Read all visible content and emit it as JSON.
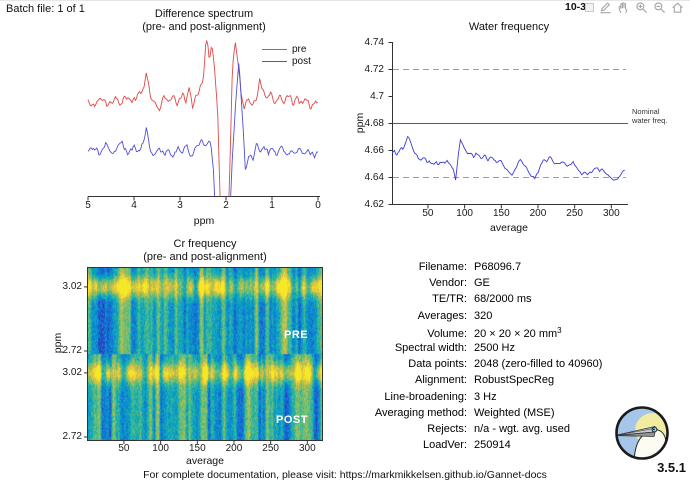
{
  "page": {
    "batch_label": "Batch file: 1 of 1",
    "date_visible": "10-3",
    "footer_text": "For complete documentation, please visit: https://markmikkelsen.github.io/Gannet-docs",
    "version": "3.5.1"
  },
  "toolbar": {
    "icons": [
      "edit",
      "pan",
      "zoom-in",
      "zoom-out",
      "home"
    ]
  },
  "colors": {
    "pre_line": "#e04848",
    "post_line": "#5050d8",
    "water_line": "#3c3cd9",
    "dashed_ref": "#9e9e9e",
    "solid_ref": "#5a5a5a",
    "axis": "#333333"
  },
  "chart_data": [
    {
      "id": "difference-spectrum",
      "type": "line",
      "title": "Difference spectrum",
      "subtitle": "(pre- and post-alignment)",
      "xlabel": "ppm",
      "xlim": [
        5,
        0
      ],
      "x_ticks": [
        5,
        4,
        3,
        2,
        1,
        0
      ],
      "legend": [
        "pre",
        "post"
      ],
      "y_unit_note": "relative amplitude, 0=baseline axis, 100=plot top; negative = clipped below axis",
      "series": [
        {
          "name": "pre",
          "color": "#e04848",
          "noise_amplitude": 2.3,
          "key_points": [
            [
              5,
              62
            ],
            [
              4.85,
              59
            ],
            [
              4.7,
              63
            ],
            [
              4.55,
              58
            ],
            [
              4.42,
              64
            ],
            [
              4.3,
              60
            ],
            [
              4.18,
              66
            ],
            [
              4.05,
              61
            ],
            [
              3.92,
              64
            ],
            [
              3.8,
              68
            ],
            [
              3.73,
              80
            ],
            [
              3.65,
              66
            ],
            [
              3.55,
              60
            ],
            [
              3.45,
              57
            ],
            [
              3.35,
              65
            ],
            [
              3.25,
              59
            ],
            [
              3.15,
              64
            ],
            [
              3.05,
              60
            ],
            [
              2.95,
              67
            ],
            [
              2.87,
              61
            ],
            [
              2.8,
              70
            ],
            [
              2.73,
              58
            ],
            [
              2.65,
              65
            ],
            [
              2.57,
              69
            ],
            [
              2.5,
              75
            ],
            [
              2.44,
              97
            ],
            [
              2.4,
              100
            ],
            [
              2.36,
              88
            ],
            [
              2.31,
              98
            ],
            [
              2.27,
              90
            ],
            [
              2.18,
              55
            ],
            [
              2.09,
              -40
            ],
            [
              2.0,
              -45
            ],
            [
              1.93,
              5
            ],
            [
              1.86,
              85
            ],
            [
              1.8,
              101
            ],
            [
              1.75,
              90
            ],
            [
              1.68,
              70
            ],
            [
              1.6,
              57
            ],
            [
              1.52,
              64
            ],
            [
              1.44,
              59
            ],
            [
              1.35,
              62
            ],
            [
              1.27,
              77
            ],
            [
              1.2,
              70
            ],
            [
              1.12,
              64
            ],
            [
              1.03,
              67
            ],
            [
              0.95,
              60
            ],
            [
              0.85,
              66
            ],
            [
              0.75,
              61
            ],
            [
              0.65,
              65
            ],
            [
              0.55,
              60
            ],
            [
              0.45,
              64
            ],
            [
              0.35,
              59
            ],
            [
              0.25,
              63
            ],
            [
              0.15,
              57
            ],
            [
              0.05,
              61
            ],
            [
              0,
              60
            ]
          ]
        },
        {
          "name": "post",
          "color": "#5050d8",
          "noise_amplitude": 1.9,
          "key_points": [
            [
              5,
              29
            ],
            [
              4.88,
              32
            ],
            [
              4.75,
              27
            ],
            [
              4.62,
              34
            ],
            [
              4.5,
              28
            ],
            [
              4.38,
              31
            ],
            [
              4.26,
              35
            ],
            [
              4.14,
              28
            ],
            [
              4.02,
              32
            ],
            [
              3.9,
              29
            ],
            [
              3.8,
              33
            ],
            [
              3.73,
              44
            ],
            [
              3.65,
              30
            ],
            [
              3.55,
              25
            ],
            [
              3.45,
              32
            ],
            [
              3.35,
              27
            ],
            [
              3.25,
              31
            ],
            [
              3.15,
              26
            ],
            [
              3.05,
              32
            ],
            [
              2.95,
              28
            ],
            [
              2.85,
              34
            ],
            [
              2.77,
              24
            ],
            [
              2.68,
              30
            ],
            [
              2.6,
              33
            ],
            [
              2.52,
              38
            ],
            [
              2.45,
              31
            ],
            [
              2.38,
              37
            ],
            [
              2.32,
              31
            ],
            [
              2.27,
              15
            ],
            [
              2.2,
              -30
            ],
            [
              2.05,
              -45
            ],
            [
              1.95,
              -40
            ],
            [
              1.88,
              15
            ],
            [
              1.8,
              55
            ],
            [
              1.72,
              87
            ],
            [
              1.66,
              60
            ],
            [
              1.58,
              18
            ],
            [
              1.5,
              26
            ],
            [
              1.42,
              24
            ],
            [
              1.33,
              34
            ],
            [
              1.25,
              29
            ],
            [
              1.17,
              33
            ],
            [
              1.08,
              28
            ],
            [
              1.0,
              32
            ],
            [
              0.9,
              26
            ],
            [
              0.8,
              31
            ],
            [
              0.7,
              27
            ],
            [
              0.6,
              30
            ],
            [
              0.5,
              26
            ],
            [
              0.4,
              30
            ],
            [
              0.3,
              25
            ],
            [
              0.2,
              29
            ],
            [
              0.1,
              26
            ],
            [
              0,
              28
            ]
          ]
        }
      ]
    },
    {
      "id": "water-frequency",
      "type": "line",
      "title": "Water frequency",
      "xlabel": "average",
      "ylabel": "ppm",
      "xlim": [
        1,
        320
      ],
      "ylim": [
        4.62,
        4.74
      ],
      "x_ticks": [
        50,
        100,
        150,
        200,
        250,
        300
      ],
      "y_ticks": [
        4.62,
        4.64,
        4.66,
        4.68,
        4.7,
        4.72,
        4.74
      ],
      "reference_lines": [
        {
          "value": 4.72,
          "style": "dashed"
        },
        {
          "value": 4.68,
          "style": "solid",
          "label": "Nominal water freq.",
          "label_lines": [
            "Nominal",
            "water freq."
          ]
        },
        {
          "value": 4.64,
          "style": "dashed"
        }
      ],
      "series": [
        {
          "name": "water frequency",
          "color": "#3c3cd9",
          "noise_amplitude": 0.0012,
          "points": [
            [
              1,
              4.658
            ],
            [
              4,
              4.661
            ],
            [
              7,
              4.657
            ],
            [
              10,
              4.659
            ],
            [
              13,
              4.662
            ],
            [
              16,
              4.661
            ],
            [
              19,
              4.666
            ],
            [
              22,
              4.67
            ],
            [
              25,
              4.668
            ],
            [
              28,
              4.663
            ],
            [
              31,
              4.66
            ],
            [
              34,
              4.657
            ],
            [
              37,
              4.654
            ],
            [
              40,
              4.652
            ],
            [
              43,
              4.655
            ],
            [
              46,
              4.654
            ],
            [
              49,
              4.651
            ],
            [
              52,
              4.653
            ],
            [
              55,
              4.65
            ],
            [
              58,
              4.649
            ],
            [
              61,
              4.651
            ],
            [
              64,
              4.649
            ],
            [
              67,
              4.652
            ],
            [
              70,
              4.651
            ],
            [
              73,
              4.65
            ],
            [
              76,
              4.653
            ],
            [
              79,
              4.651
            ],
            [
              82,
              4.648
            ],
            [
              85,
              4.645
            ],
            [
              88,
              4.638
            ],
            [
              91,
              4.655
            ],
            [
              94,
              4.668
            ],
            [
              97,
              4.665
            ],
            [
              100,
              4.661
            ],
            [
              104,
              4.657
            ],
            [
              108,
              4.659
            ],
            [
              112,
              4.655
            ],
            [
              116,
              4.657
            ],
            [
              120,
              4.656
            ],
            [
              124,
              4.654
            ],
            [
              128,
              4.656
            ],
            [
              132,
              4.653
            ],
            [
              136,
              4.655
            ],
            [
              140,
              4.652
            ],
            [
              144,
              4.651
            ],
            [
              148,
              4.653
            ],
            [
              152,
              4.65
            ],
            [
              156,
              4.647
            ],
            [
              160,
              4.645
            ],
            [
              164,
              4.641
            ],
            [
              168,
              4.645
            ],
            [
              172,
              4.65
            ],
            [
              176,
              4.654
            ],
            [
              180,
              4.651
            ],
            [
              184,
              4.647
            ],
            [
              188,
              4.643
            ],
            [
              192,
              4.641
            ],
            [
              196,
              4.64
            ],
            [
              200,
              4.644
            ],
            [
              204,
              4.65
            ],
            [
              208,
              4.654
            ],
            [
              212,
              4.652
            ],
            [
              216,
              4.656
            ],
            [
              220,
              4.653
            ],
            [
              224,
              4.649
            ],
            [
              228,
              4.65
            ],
            [
              232,
              4.652
            ],
            [
              236,
              4.65
            ],
            [
              240,
              4.648
            ],
            [
              244,
              4.65
            ],
            [
              248,
              4.651
            ],
            [
              252,
              4.648
            ],
            [
              256,
              4.645
            ],
            [
              260,
              4.642
            ],
            [
              264,
              4.645
            ],
            [
              268,
              4.642
            ],
            [
              272,
              4.643
            ],
            [
              276,
              4.646
            ],
            [
              280,
              4.648
            ],
            [
              284,
              4.645
            ],
            [
              288,
              4.647
            ],
            [
              292,
              4.643
            ],
            [
              296,
              4.641
            ],
            [
              300,
              4.639
            ],
            [
              304,
              4.638
            ],
            [
              308,
              4.638
            ],
            [
              312,
              4.641
            ],
            [
              316,
              4.644
            ],
            [
              319,
              4.645
            ]
          ]
        }
      ]
    },
    {
      "id": "cr-frequency",
      "type": "heatmap",
      "title": "Cr frequency",
      "subtitle": "(pre- and post-alignment)",
      "xlabel": "average",
      "ylabel": "ppm",
      "xlim": [
        1,
        320
      ],
      "x_ticks": [
        50,
        100,
        150,
        200,
        250,
        300
      ],
      "sections": [
        {
          "label": "PRE",
          "y_ticks": [
            3.02,
            2.72
          ]
        },
        {
          "label": "POST",
          "y_ticks": [
            3.02,
            2.72
          ]
        }
      ],
      "colormap": "parula",
      "cols": 320,
      "rows_per_section": 56,
      "band_center_frac": 0.22,
      "seed": 13,
      "description": "Spectrogram-style heatmap of Cr signal across 320 averages; bright yellow-green band near 3.02 ppm over teal/blue noisy background, shown for pre- and post-alignment."
    }
  ],
  "info_table": {
    "rows": [
      {
        "label": "Filename:",
        "value": "P68096.7"
      },
      {
        "label": "Vendor:",
        "value": "GE"
      },
      {
        "label": "TE/TR:",
        "value": "68/2000 ms"
      },
      {
        "label": "Averages:",
        "value": "320"
      },
      {
        "label": "Volume:",
        "value": "20 × 20 × 20 mm",
        "sup": "3"
      },
      {
        "label": "Spectral width:",
        "value": "2500 Hz"
      },
      {
        "label": "Data points:",
        "value": "2048 (zero-filled to 40960)"
      },
      {
        "label": "Alignment:",
        "value": "RobustSpecReg"
      },
      {
        "label": "Line-broadening:",
        "value": "3 Hz"
      },
      {
        "label": "Averaging method:",
        "value": "Weighted (MSE)"
      },
      {
        "label": "Rejects:",
        "value": "n/a - wgt. avg. used"
      },
      {
        "label": "LoadVer:",
        "value": "250914"
      }
    ]
  }
}
